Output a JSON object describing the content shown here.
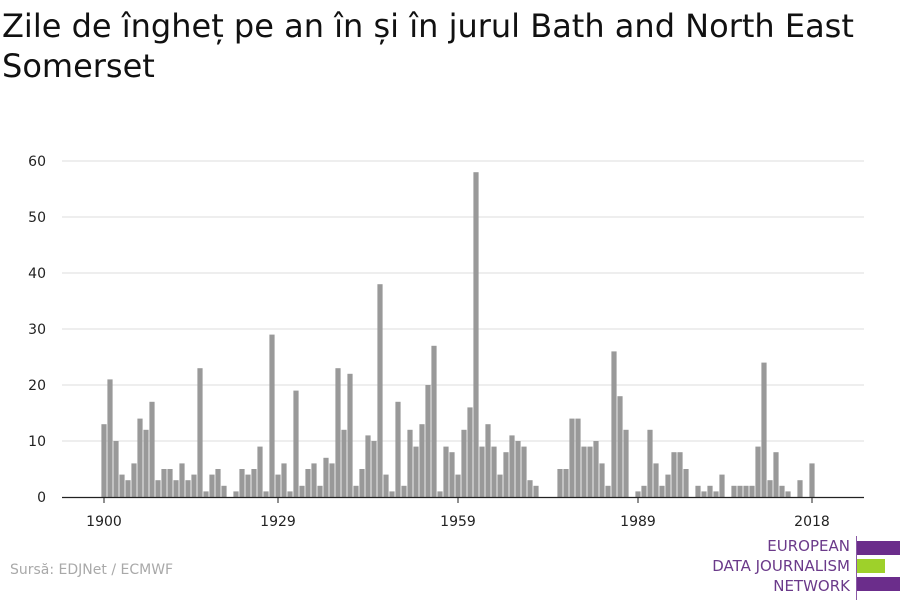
{
  "title": "Zile de îngheț pe an în și în jurul Bath and North East Somerset",
  "source": "Sursă: EDJNet / ECMWF",
  "logo": {
    "lines": [
      "EUROPEAN",
      "DATA JOURNALISM",
      "NETWORK"
    ],
    "colors": {
      "purple": "#6b2d8b",
      "green": "#9ed12a"
    }
  },
  "chart_data": {
    "type": "bar",
    "x_start": 1900,
    "x_end": 2018,
    "x_ticks": [
      1900,
      1929,
      1959,
      1989,
      2018
    ],
    "y_ticks": [
      0,
      10,
      20,
      30,
      40,
      50,
      60
    ],
    "ylim": [
      0,
      60
    ],
    "grid": true,
    "bar_color": "#999999",
    "values": [
      13,
      21,
      10,
      4,
      3,
      6,
      14,
      12,
      17,
      3,
      5,
      5,
      3,
      6,
      3,
      4,
      23,
      1,
      4,
      5,
      2,
      0,
      1,
      5,
      4,
      5,
      9,
      1,
      29,
      4,
      6,
      1,
      19,
      2,
      5,
      6,
      2,
      7,
      6,
      23,
      12,
      22,
      2,
      5,
      11,
      10,
      38,
      4,
      1,
      17,
      2,
      12,
      9,
      13,
      20,
      27,
      1,
      9,
      8,
      4,
      12,
      16,
      58,
      9,
      13,
      9,
      4,
      8,
      11,
      10,
      9,
      3,
      2,
      0,
      0,
      0,
      5,
      5,
      14,
      14,
      9,
      9,
      10,
      6,
      2,
      26,
      18,
      12,
      0,
      1,
      2,
      12,
      6,
      2,
      4,
      8,
      8,
      5,
      0,
      2,
      1,
      2,
      1,
      4,
      0,
      2,
      2,
      2,
      2,
      9,
      24,
      3,
      8,
      2,
      1,
      0,
      3,
      0,
      6
    ]
  }
}
